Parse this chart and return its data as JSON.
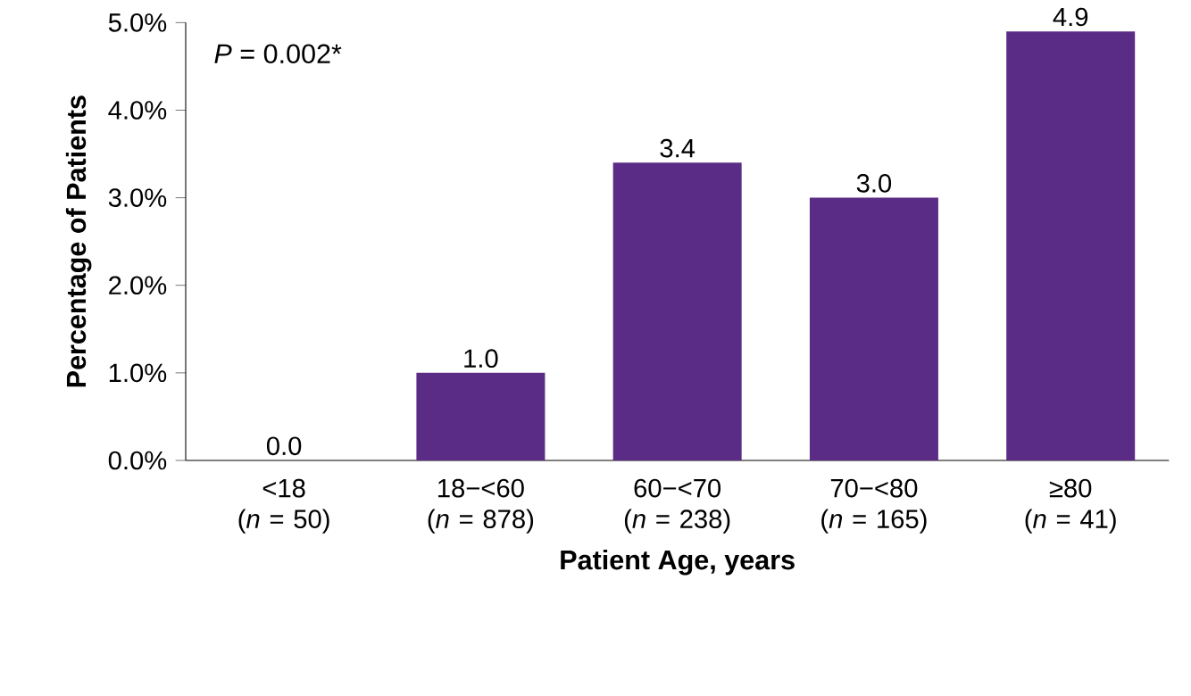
{
  "chart_data": {
    "type": "bar",
    "xlabel": "Patient Age, years",
    "ylabel": "Percentage of Patients",
    "categories": [
      "<18\n(*n* = 50)",
      "18−<60\n(*n* = 878)",
      "60−<70\n(*n* = 238)",
      "70−<80\n(*n* = 165)",
      "≥80\n(*n* = 41)"
    ],
    "values": [
      0.0,
      1.0,
      3.4,
      3.0,
      4.9
    ],
    "value_labels": [
      "0.0",
      "1.0",
      "3.4",
      "3.0",
      "4.9"
    ],
    "color": "#5b2c86",
    "ylim": [
      0,
      5
    ],
    "yticks": [
      {
        "value": 0,
        "label": "0.0%"
      },
      {
        "value": 1,
        "label": "1.0%"
      },
      {
        "value": 2,
        "label": "2.0%"
      },
      {
        "value": 3,
        "label": "3.0%"
      },
      {
        "value": 4,
        "label": "4.0%"
      },
      {
        "value": 5,
        "label": "5.0%"
      }
    ],
    "annotations": [
      "*P* = 0.002*"
    ],
    "grid": false
  }
}
